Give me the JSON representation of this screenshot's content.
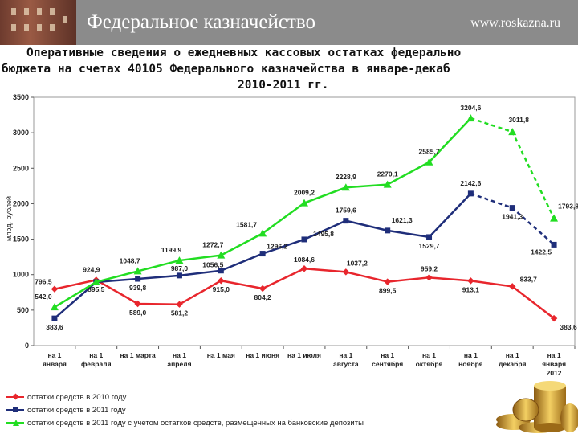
{
  "header": {
    "org_name": "Федеральное казначейство",
    "site": "www.roskazna.ru"
  },
  "title": {
    "line1": "Оперативные сведения о ежедневных кассовых остатках федерально",
    "line2": "бюджета на счетах 40105 Федерального казначейства в январе-декаб",
    "line3": "2010-2011 гг."
  },
  "colors": {
    "s2010": "#e8262d",
    "s2011": "#1f2e7a",
    "s2011d": "#22dd22"
  },
  "chart_data": {
    "type": "line",
    "ylabel": "млрд. рублей",
    "ylim": [
      0,
      3500
    ],
    "yticks": [
      "0",
      "500",
      "1000",
      "1500",
      "2000",
      "2500",
      "3000",
      "3500"
    ],
    "categories": [
      [
        "на 1",
        "января"
      ],
      [
        "на 1",
        "февраля"
      ],
      [
        "на 1 марта"
      ],
      [
        "на 1",
        "апреля"
      ],
      [
        "на 1 мая"
      ],
      [
        "на 1 июня"
      ],
      [
        "на 1 июля"
      ],
      [
        "на 1",
        "августа"
      ],
      [
        "на 1",
        "сентября"
      ],
      [
        "на 1",
        "октября"
      ],
      [
        "на 1",
        "ноября"
      ],
      [
        "на 1",
        "декабря"
      ],
      [
        "на 1",
        "января",
        "2012"
      ]
    ],
    "series": [
      {
        "name": "остатки средств в 2010 году",
        "values": [
          796.5,
          924.9,
          589.0,
          581.2,
          915.0,
          804.2,
          1084.6,
          1037.2,
          899.5,
          959.2,
          913.1,
          833.7,
          383.6
        ],
        "labels": [
          "796,5",
          "924,9",
          "589,0",
          "581,2",
          "915,0",
          "804,2",
          "1084,6",
          "1037,2",
          "899,5",
          "959,2",
          "913,1",
          "833,7",
          "383,6"
        ]
      },
      {
        "name": "остатки средств в 2011 году",
        "values": [
          383.6,
          895.5,
          939.8,
          987.0,
          1056.5,
          1296.2,
          1495.8,
          1759.6,
          1621.3,
          1529.7,
          2142.6,
          1941.3,
          1422.5
        ],
        "labels": [
          "383,6",
          "895,5",
          "939,8",
          "987,0",
          "1056,5",
          "1296,2",
          "1495,8",
          "1759,6",
          "1621,3",
          "1529,7",
          "2142,6",
          "1941,3",
          "1422,5"
        ]
      },
      {
        "name": "остатки средств в 2011 году с учетом остатков средств, размещенных на банковские депозиты",
        "values": [
          542.0,
          895.5,
          1048.7,
          1199.9,
          1272.7,
          1581.7,
          2009.2,
          2228.9,
          2270.1,
          2585.7,
          3204.6,
          3011.8,
          1793.8
        ],
        "labels": [
          "542,0",
          "",
          "1048,7",
          "1199,9",
          "1272,7",
          "1581,7",
          "2009,2",
          "2228,9",
          "2270,1",
          "2585,7",
          "3204,6",
          "3011,8",
          "1793,8"
        ]
      }
    ]
  }
}
